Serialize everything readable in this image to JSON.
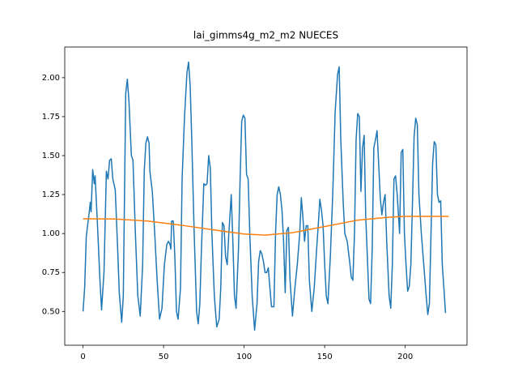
{
  "chart_data": {
    "type": "line",
    "title": "lai_gimms4g_m2_m2 NUECES",
    "xlim": [
      -11.35,
      238.35
    ],
    "xticks": [
      0,
      50,
      100,
      150,
      200
    ],
    "ylim": [
      0.283,
      2.197
    ],
    "yticks": [
      {
        "value": 0.5,
        "label": "0.50"
      },
      {
        "value": 0.75,
        "label": "0.75"
      },
      {
        "value": 1.0,
        "label": "1.00"
      },
      {
        "value": 1.25,
        "label": "1.25"
      },
      {
        "value": 1.5,
        "label": "1.50"
      },
      {
        "value": 1.75,
        "label": "1.75"
      },
      {
        "value": 2.0,
        "label": "2.00"
      }
    ],
    "series": [
      {
        "color": "#1f77b4",
        "x": [
          0,
          1,
          2,
          4,
          4.5,
          5,
          6,
          7,
          7.5,
          9,
          10.5,
          11.5,
          13,
          14.5,
          15.5,
          16.5,
          17.5,
          18.5,
          20,
          21.5,
          22.5,
          24,
          25,
          26.5,
          27.5,
          28.5,
          30,
          31,
          32.5,
          34,
          35.5,
          37,
          38,
          39,
          40,
          41,
          41.5,
          43,
          44.5,
          46,
          47.5,
          49,
          50.5,
          52,
          53,
          54,
          54.5,
          55,
          56,
          57,
          58,
          59,
          60.5,
          61.5,
          63,
          64.5,
          65.5,
          66.5,
          67.5,
          69,
          70.5,
          71.5,
          72.5,
          73.5,
          75,
          76,
          77,
          78,
          79,
          80,
          81.5,
          83,
          84.5,
          85.5,
          86.5,
          87.5,
          88.5,
          89.5,
          90.5,
          92,
          93,
          94,
          95,
          96.5,
          97.5,
          98.5,
          99.5,
          100.5,
          101.5,
          102.5,
          103.5,
          105,
          106.5,
          108,
          109,
          110,
          111,
          112,
          113,
          114,
          115,
          116,
          117,
          118.5,
          119.5,
          120.5,
          121.5,
          122.5,
          123.5,
          124.5,
          125.5,
          126.5,
          127.5,
          128.5,
          130,
          131.5,
          133,
          134.5,
          135.5,
          136.5,
          137.5,
          138.5,
          139.5,
          140.5,
          142,
          143.5,
          145,
          146,
          147,
          148,
          149,
          150,
          151,
          152,
          153.5,
          155,
          156.5,
          158,
          159,
          160,
          161.5,
          162.5,
          164,
          165.5,
          166.5,
          167.5,
          168.5,
          169.5,
          170.5,
          171.5,
          172.5,
          173.5,
          174.5,
          175.5,
          176.5,
          177.5,
          178.5,
          179.5,
          180.5,
          181.5,
          182.5,
          183.5,
          184.5,
          185.5,
          186.5,
          187.5,
          188.5,
          190,
          191,
          192,
          193,
          194,
          195,
          196.5,
          197.5,
          198.5,
          199.5,
          200.5,
          201.5,
          202.5,
          203.5,
          204.5,
          205.5,
          206.5,
          207.5,
          208.5,
          210,
          211.5,
          213,
          214,
          215,
          216,
          217,
          218,
          219,
          220,
          221,
          222,
          223,
          224,
          225
        ],
        "values": [
          0.5,
          0.65,
          0.98,
          1.15,
          1.2,
          1.14,
          1.41,
          1.32,
          1.37,
          1.05,
          0.7,
          0.51,
          0.75,
          1.4,
          1.35,
          1.47,
          1.48,
          1.35,
          1.28,
          0.9,
          0.62,
          0.43,
          0.6,
          1.9,
          1.99,
          1.85,
          1.5,
          1.47,
          1.0,
          0.6,
          0.47,
          0.8,
          1.4,
          1.58,
          1.62,
          1.58,
          1.4,
          1.27,
          1.0,
          0.7,
          0.45,
          0.52,
          0.8,
          0.93,
          0.95,
          0.93,
          0.9,
          1.08,
          1.08,
          0.85,
          0.5,
          0.45,
          0.65,
          1.35,
          1.75,
          2.03,
          2.1,
          1.95,
          1.6,
          1.0,
          0.5,
          0.42,
          0.55,
          0.9,
          1.32,
          1.31,
          1.32,
          1.5,
          1.42,
          1.0,
          0.6,
          0.4,
          0.45,
          0.65,
          1.07,
          1.05,
          0.85,
          0.8,
          1.0,
          1.25,
          0.95,
          0.6,
          0.52,
          0.9,
          1.35,
          1.72,
          1.76,
          1.74,
          1.38,
          1.35,
          1.0,
          0.6,
          0.38,
          0.55,
          0.82,
          0.89,
          0.87,
          0.82,
          0.75,
          0.75,
          0.78,
          0.65,
          0.53,
          0.53,
          1.0,
          1.25,
          1.3,
          1.25,
          1.15,
          0.95,
          0.62,
          1.02,
          1.04,
          0.7,
          0.47,
          0.65,
          0.8,
          1.0,
          1.23,
          1.1,
          0.95,
          1.05,
          1.05,
          0.7,
          0.5,
          0.65,
          0.9,
          1.05,
          1.22,
          1.15,
          1.05,
          0.8,
          0.6,
          0.55,
          0.85,
          1.25,
          1.78,
          2.02,
          2.07,
          1.6,
          1.2,
          1.0,
          0.95,
          0.82,
          0.72,
          0.7,
          1.0,
          1.6,
          1.77,
          1.75,
          1.27,
          1.55,
          1.63,
          1.1,
          0.85,
          0.58,
          0.55,
          0.9,
          1.55,
          1.6,
          1.66,
          1.45,
          1.23,
          1.12,
          1.2,
          1.25,
          0.95,
          0.6,
          0.52,
          0.8,
          1.35,
          1.37,
          1.25,
          1.0,
          1.52,
          1.54,
          1.0,
          0.8,
          0.63,
          0.66,
          0.8,
          1.2,
          1.62,
          1.74,
          1.7,
          1.25,
          1.0,
          0.8,
          0.6,
          0.48,
          0.55,
          1.0,
          1.45,
          1.59,
          1.57,
          1.25,
          1.2,
          1.21,
          0.8,
          0.65,
          0.49
        ]
      },
      {
        "color": "#ff7f0e",
        "x": [
          0,
          20,
          40,
          60,
          80,
          100,
          113,
          130,
          150,
          170,
          190,
          200,
          227
        ],
        "values": [
          1.095,
          1.093,
          1.08,
          1.055,
          1.025,
          0.997,
          0.99,
          1.005,
          1.045,
          1.085,
          1.105,
          1.11,
          1.11
        ]
      }
    ]
  }
}
